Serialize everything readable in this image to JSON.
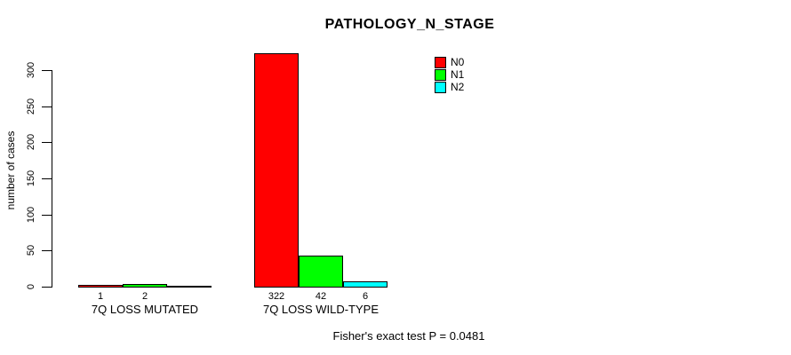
{
  "chart_data": {
    "type": "bar",
    "title": "PATHOLOGY_N_STAGE",
    "ylabel": "number of cases",
    "xlabel": "",
    "ylim": [
      0,
      300
    ],
    "yticks": [
      0,
      50,
      100,
      150,
      200,
      250,
      300
    ],
    "grid": false,
    "categories": [
      "7Q LOSS MUTATED",
      "7Q LOSS WILD-TYPE"
    ],
    "series": [
      {
        "name": "N0",
        "color": "#ff0000",
        "values": [
          1,
          322
        ]
      },
      {
        "name": "N1",
        "color": "#00ff00",
        "values": [
          2,
          42
        ]
      },
      {
        "name": "N2",
        "color": "#00ffff",
        "values": [
          0,
          6
        ]
      }
    ],
    "bar_value_labels": [
      [
        "1",
        "2",
        ""
      ],
      [
        "322",
        "42",
        "6"
      ]
    ],
    "legend": {
      "position": "top-right",
      "entries": [
        {
          "label": "N0",
          "color": "#ff0000"
        },
        {
          "label": "N1",
          "color": "#00ff00"
        },
        {
          "label": "N2",
          "color": "#00ffff"
        }
      ]
    },
    "footnote": "Fisher's exact test P = 0.0481"
  },
  "colors": {
    "background": "#ffffff",
    "axis": "#000000",
    "text": "#000000"
  }
}
